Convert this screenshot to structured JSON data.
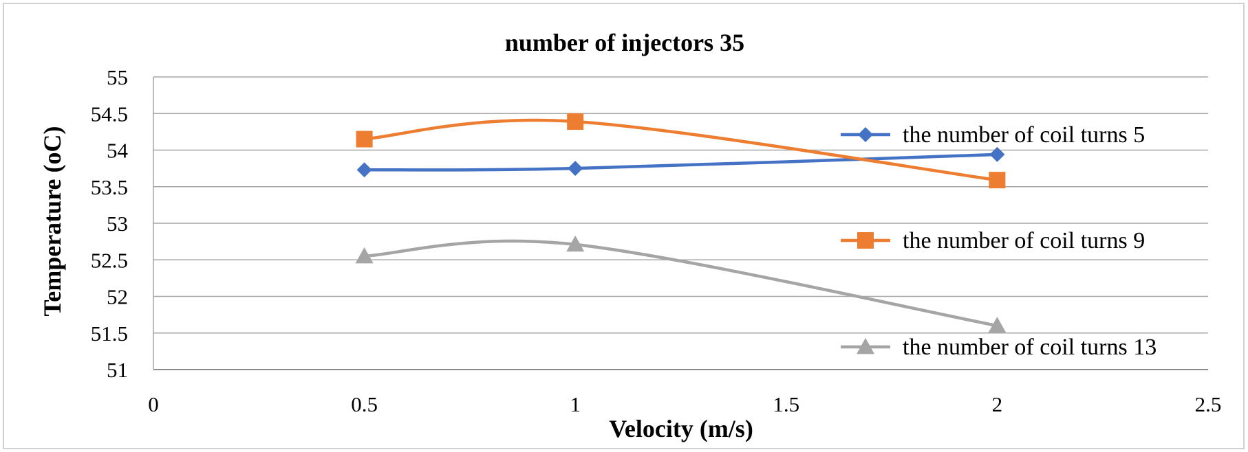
{
  "chart_data": {
    "type": "line",
    "title": "number of injectors 35",
    "xlabel": "Velocity (m/s)",
    "ylabel": "Temperature (oC)",
    "xlim": [
      0,
      2.5
    ],
    "ylim": [
      51,
      55
    ],
    "xticks": [
      "0",
      "0.5",
      "1",
      "1.5",
      "2",
      "2.5"
    ],
    "yticks": [
      "51",
      "51.5",
      "52",
      "52.5",
      "53",
      "53.5",
      "54",
      "54.5",
      "55"
    ],
    "grid": "horizontal",
    "legend_position": "right",
    "smooth": true,
    "series": [
      {
        "name": "the number of coil turns 5",
        "color": "#4472C4",
        "marker": "diamond",
        "x": [
          0.5,
          1,
          2
        ],
        "values": [
          53.73,
          53.75,
          53.94
        ]
      },
      {
        "name": "the number of coil turns 9",
        "color": "#ED7D31",
        "marker": "square",
        "x": [
          0.5,
          1,
          2
        ],
        "values": [
          54.15,
          54.39,
          53.59
        ]
      },
      {
        "name": "the number of coil turns 13",
        "color": "#A5A5A5",
        "marker": "triangle",
        "x": [
          0.5,
          1,
          2
        ],
        "values": [
          52.55,
          52.71,
          51.6
        ]
      }
    ]
  }
}
